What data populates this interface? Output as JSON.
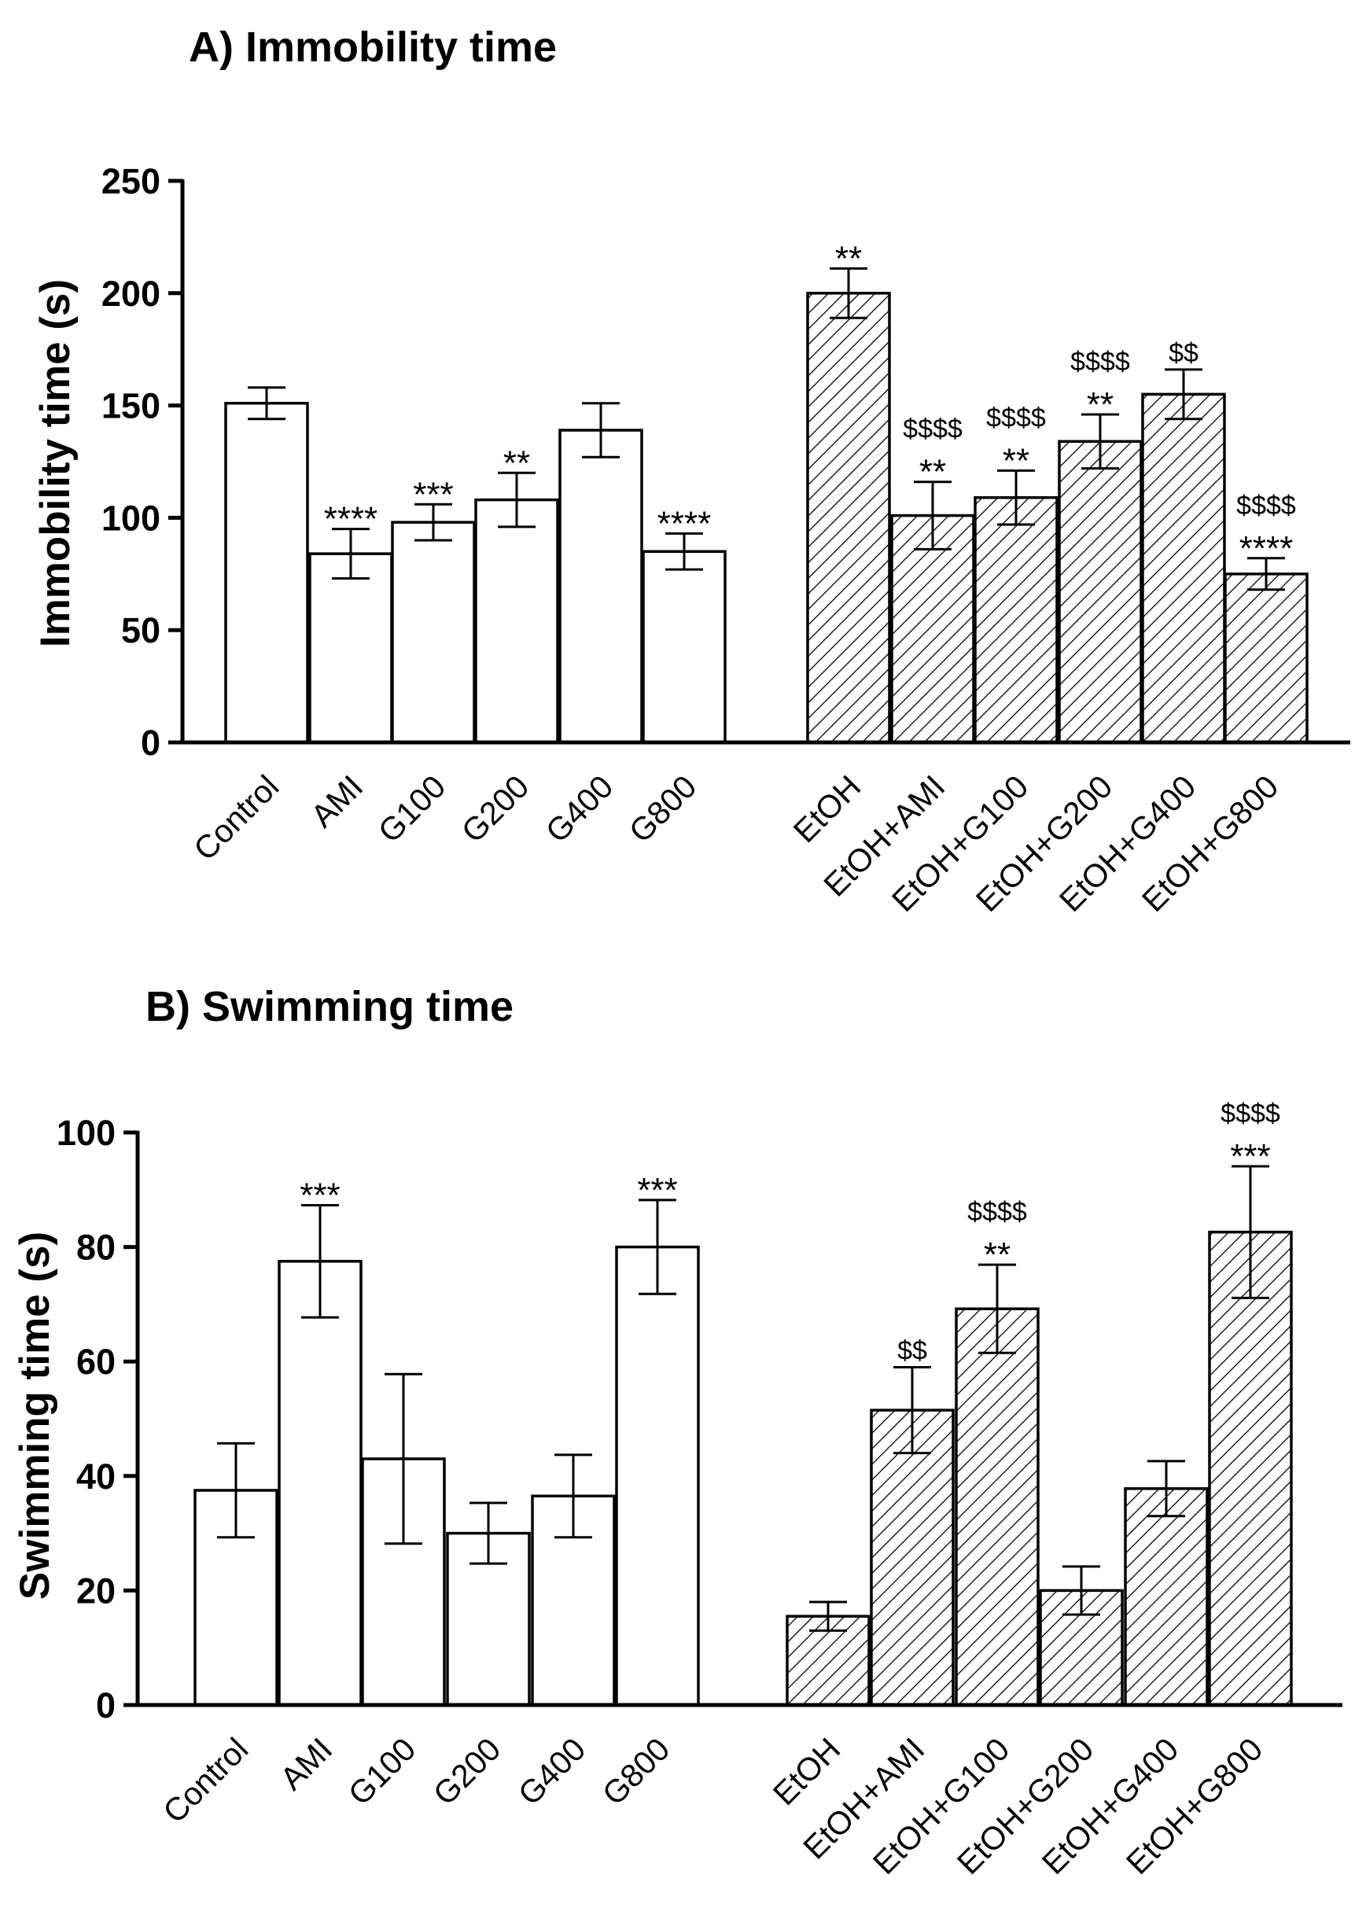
{
  "chart_data": [
    {
      "type": "bar",
      "title": "A) Immobility time",
      "xlabel": "",
      "ylabel": "Immobility time (s)",
      "ylim": [
        0,
        250
      ],
      "yticks": [
        0,
        50,
        100,
        150,
        200,
        250
      ],
      "categories": [
        "Control",
        "AMI",
        "G100",
        "G200",
        "G400",
        "G800",
        "EtOH",
        "EtOH+AMI",
        "EtOH+G100",
        "EtOH+G200",
        "EtOH+G400",
        "EtOH+G800"
      ],
      "values": [
        151,
        84,
        98,
        108,
        139,
        85,
        200,
        101,
        109,
        134,
        155,
        75
      ],
      "errors": [
        7,
        11,
        8,
        12,
        12,
        8,
        11,
        15,
        12,
        12,
        11,
        7
      ],
      "significance": [
        "",
        "****",
        "***",
        "**",
        "",
        "****",
        "**",
        "**",
        "**",
        "**",
        "",
        "****"
      ],
      "significance_vs_etoh": [
        "",
        "",
        "",
        "",
        "",
        "",
        "",
        "$$$$",
        "$$$$",
        "$$$$",
        "$$",
        "$$$$"
      ],
      "hatched_from_index": 6,
      "grid": false
    },
    {
      "type": "bar",
      "title": "B) Swimming time",
      "xlabel": "",
      "ylabel": "Swimming time (s)",
      "ylim": [
        0,
        100
      ],
      "yticks": [
        0,
        20,
        40,
        60,
        80,
        100
      ],
      "categories": [
        "Control",
        "AMI",
        "G100",
        "G200",
        "G400",
        "G800",
        "EtOH",
        "EtOH+AMI",
        "EtOH+G100",
        "EtOH+G200",
        "EtOH+G400",
        "EtOH+G800"
      ],
      "values": [
        37.5,
        77.5,
        43,
        30,
        36.5,
        80,
        15.5,
        51.5,
        69.2,
        20,
        37.8,
        82.6
      ],
      "errors": [
        8.2,
        9.8,
        14.8,
        5.3,
        7.2,
        8.2,
        2.5,
        7.5,
        7.7,
        4.2,
        4.8,
        11.5
      ],
      "significance": [
        "",
        "***",
        "",
        "",
        "",
        "***",
        "",
        "",
        "**",
        "",
        "",
        "***"
      ],
      "significance_vs_etoh": [
        "",
        "",
        "",
        "",
        "",
        "",
        "",
        "$$",
        "$$$$",
        "",
        "",
        "$$$$"
      ],
      "hatched_from_index": 6,
      "grid": false
    }
  ]
}
